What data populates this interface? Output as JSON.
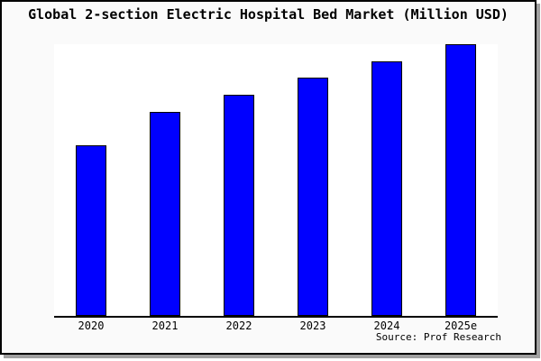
{
  "frame": {
    "background_color": "#fafafa",
    "plot_background_color": "#ffffff",
    "border_color": "#000000",
    "shadow_color": "#a0a0a0"
  },
  "chart_data": {
    "type": "bar",
    "title": "Global 2-section Electric Hospital Bed Market (Million USD)",
    "categories": [
      "2020",
      "2021",
      "2022",
      "2023",
      "2024",
      "2025e"
    ],
    "values": [
      62.8,
      75.1,
      81.3,
      87.6,
      93.7,
      100
    ],
    "values_unit": "relative (no y-axis scale shown; 2025e = 100)",
    "xlabel": "",
    "ylabel": "",
    "ylim": [
      0,
      100
    ],
    "y_axis_shown": false,
    "gridlines": false,
    "legend": false,
    "bar_color": "#0000ff",
    "bar_edge_color": "#000000",
    "annotation": "Source: Prof Research"
  }
}
